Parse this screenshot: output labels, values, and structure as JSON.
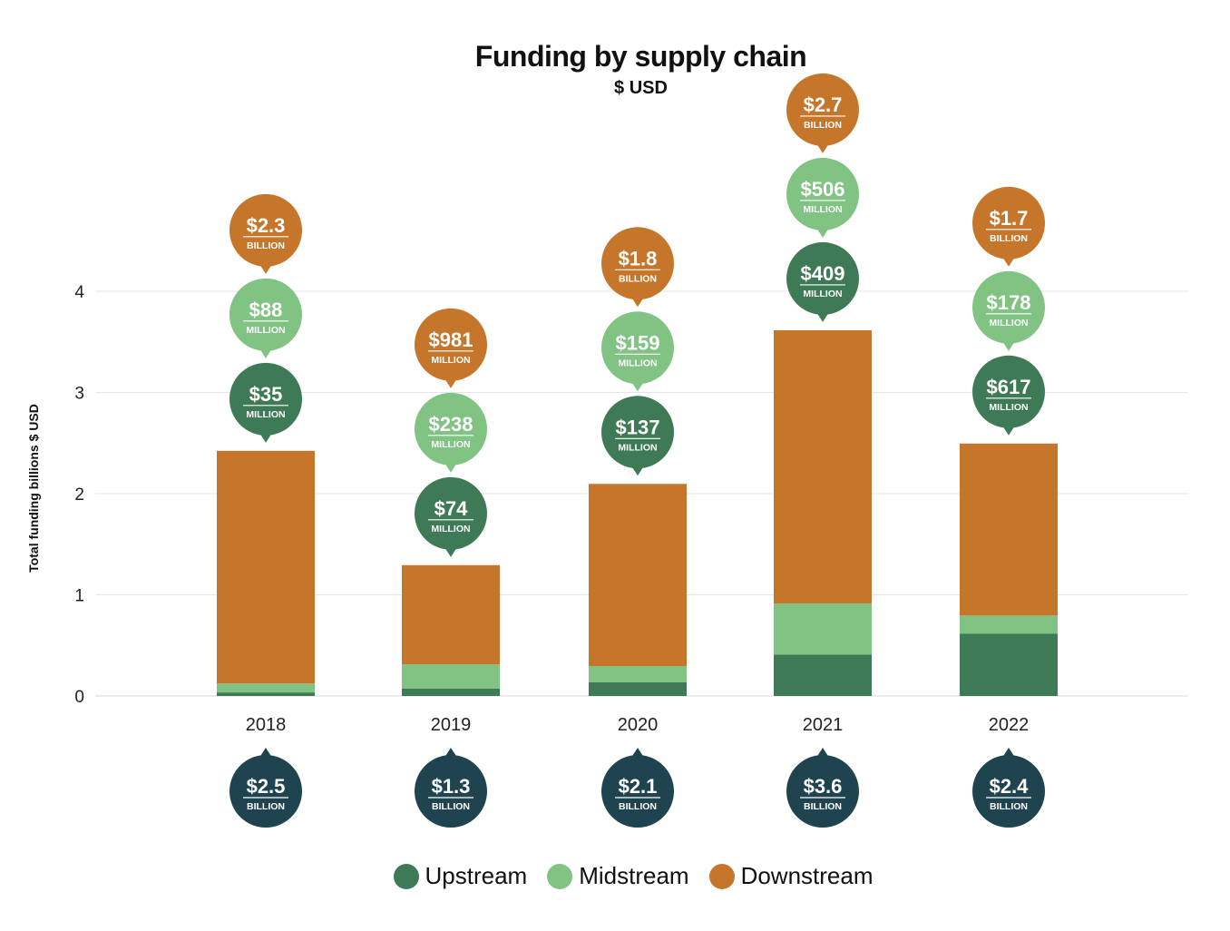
{
  "chart_data": {
    "type": "bar",
    "stacked": true,
    "title": "Funding by supply chain",
    "subtitle": "$ USD",
    "ylabel": "Total funding billions $ USD",
    "xlabel": "",
    "ylim": [
      0,
      4
    ],
    "yticks": [
      0,
      1,
      2,
      3,
      4
    ],
    "grid": true,
    "legend_position": "bottom",
    "categories": [
      "2018",
      "2019",
      "2020",
      "2021",
      "2022"
    ],
    "series": [
      {
        "name": "Upstream",
        "color": "#3e7a55",
        "values": [
          0.035,
          0.074,
          0.137,
          0.409,
          0.617
        ],
        "labels": [
          {
            "amount": "$35",
            "unit": "MILLION"
          },
          {
            "amount": "$74",
            "unit": "MILLION"
          },
          {
            "amount": "$137",
            "unit": "MILLION"
          },
          {
            "amount": "$409",
            "unit": "MILLION"
          },
          {
            "amount": "$617",
            "unit": "MILLION"
          }
        ]
      },
      {
        "name": "Midstream",
        "color": "#80c383",
        "values": [
          0.088,
          0.238,
          0.159,
          0.506,
          0.178
        ],
        "labels": [
          {
            "amount": "$88",
            "unit": "MILLION"
          },
          {
            "amount": "$238",
            "unit": "MILLION"
          },
          {
            "amount": "$159",
            "unit": "MILLION"
          },
          {
            "amount": "$506",
            "unit": "MILLION"
          },
          {
            "amount": "$178",
            "unit": "MILLION"
          }
        ]
      },
      {
        "name": "Downstream",
        "color": "#c6762b",
        "values": [
          2.3,
          0.981,
          1.8,
          2.7,
          1.7
        ],
        "labels": [
          {
            "amount": "$2.3",
            "unit": "BILLION"
          },
          {
            "amount": "$981",
            "unit": "MILLION"
          },
          {
            "amount": "$1.8",
            "unit": "BILLION"
          },
          {
            "amount": "$2.7",
            "unit": "BILLION"
          },
          {
            "amount": "$1.7",
            "unit": "BILLION"
          }
        ]
      }
    ],
    "totals": {
      "color": "#1f4450",
      "values": [
        2.5,
        1.3,
        2.1,
        3.6,
        2.4
      ],
      "labels": [
        {
          "amount": "$2.5",
          "unit": "BILLION"
        },
        {
          "amount": "$1.3",
          "unit": "BILLION"
        },
        {
          "amount": "$2.1",
          "unit": "BILLION"
        },
        {
          "amount": "$3.6",
          "unit": "BILLION"
        },
        {
          "amount": "$2.4",
          "unit": "BILLION"
        }
      ]
    }
  }
}
